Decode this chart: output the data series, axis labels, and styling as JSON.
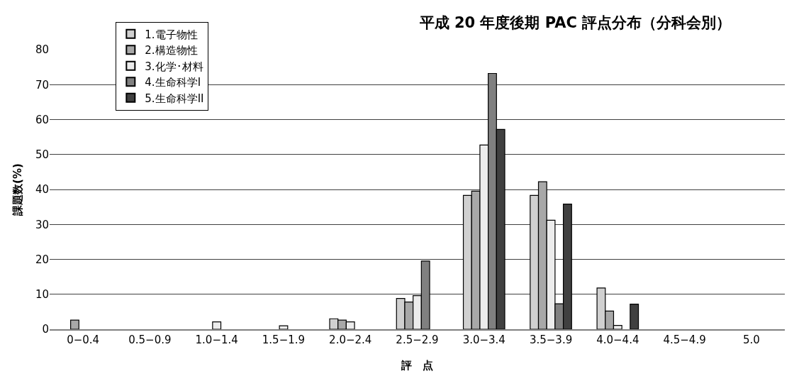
{
  "chart_data": {
    "type": "bar",
    "title": "平成 20 年度後期 PAC 評点分布（分科会別）",
    "xlabel": "評　点",
    "ylabel": "課題数(%)",
    "categories": [
      "0−0.4",
      "0.5−0.9",
      "1.0−1.4",
      "1.5−1.9",
      "2.0−2.4",
      "2.5−2.9",
      "3.0−3.4",
      "3.5−3.9",
      "4.0−4.4",
      "4.5−4.9",
      "5.0"
    ],
    "series": [
      {
        "name": "1.電子物性",
        "color": "#d0d0d0",
        "values": [
          null,
          null,
          null,
          null,
          3.0,
          8.8,
          38.3,
          38.3,
          11.8,
          null,
          null
        ]
      },
      {
        "name": "2.構造物性",
        "color": "#a8a8a8",
        "values": [
          2.6,
          null,
          null,
          null,
          2.6,
          7.8,
          39.5,
          42.2,
          5.2,
          null,
          null
        ]
      },
      {
        "name": "3.化学･材料",
        "color": "#ececec",
        "values": [
          null,
          null,
          2.1,
          1.0,
          2.1,
          9.6,
          52.7,
          31.2,
          1.1,
          null,
          null
        ]
      },
      {
        "name": "4.生命科学I",
        "color": "#808080",
        "values": [
          null,
          null,
          null,
          null,
          null,
          19.5,
          73.2,
          7.3,
          null,
          null,
          null
        ]
      },
      {
        "name": "5.生命科学II",
        "color": "#404040",
        "values": [
          null,
          null,
          null,
          null,
          null,
          null,
          57.2,
          35.8,
          7.2,
          null,
          null
        ]
      }
    ],
    "ylim": [
      0,
      80
    ],
    "yticks": [
      0,
      10,
      20,
      30,
      40,
      50,
      60,
      70,
      80
    ],
    "grid": "y",
    "legend": "top left"
  }
}
